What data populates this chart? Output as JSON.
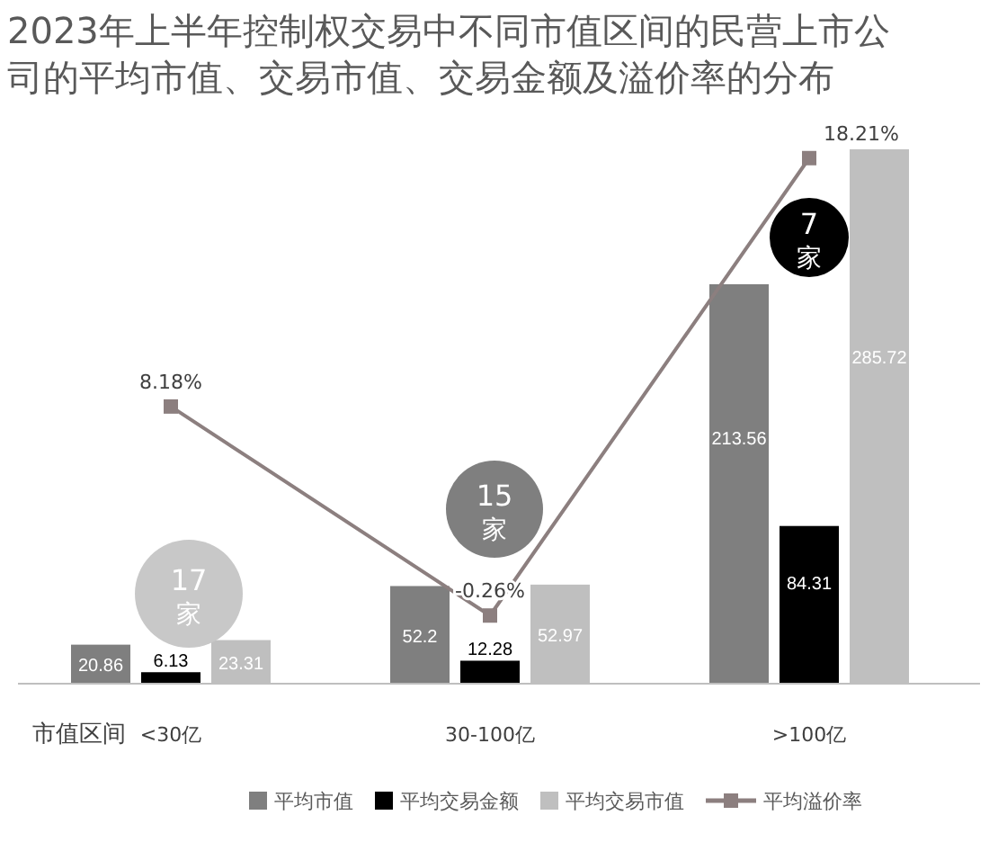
{
  "chart_data": {
    "type": "bar",
    "title": "2023年上半年控制权交易中不同市值区间的民营上市公司的平均市值、交易市值、交易金额及溢价率的分布",
    "xlabel": "市值区间",
    "categories": [
      "<30亿",
      "30-100亿",
      ">100亿"
    ],
    "series": [
      {
        "name": "平均市值",
        "color": "#7f7f7f",
        "values": [
          20.86,
          52.2,
          213.56
        ]
      },
      {
        "name": "平均交易金额",
        "color": "#000000",
        "values": [
          6.13,
          12.28,
          84.31
        ]
      },
      {
        "name": "平均交易市值",
        "color": "#bfbfbf",
        "values": [
          23.31,
          52.97,
          285.72
        ]
      },
      {
        "name": "平均溢价率",
        "type": "line",
        "axis": "y2",
        "color": "#8c7f7f",
        "marker": "square",
        "values": [
          8.18,
          -0.26,
          18.21
        ],
        "value_labels": [
          "8.18%",
          "-0.26%",
          "18.21%"
        ]
      }
    ],
    "data_labels": true,
    "legend": "bottom",
    "tick_labels": "x",
    "annotations": [
      "17家",
      "15家",
      "7家"
    ]
  }
}
